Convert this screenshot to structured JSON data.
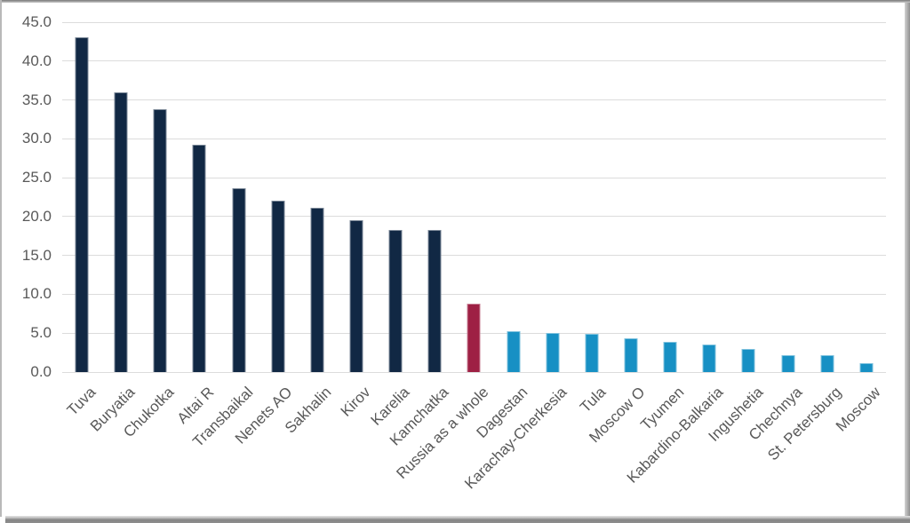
{
  "chart_data": {
    "type": "bar",
    "title": "",
    "categories": [
      "Tuva",
      "Buryatia",
      "Chukotka",
      "Altai R",
      "Transbaikal",
      "Nenets AO",
      "Sakhalin",
      "Kirov",
      "Karelia",
      "Kamchatka",
      "Russia as a whole",
      "Dagestan",
      "Karachay-Cherkesia",
      "Tula",
      "Moscow O",
      "Tyumen",
      "Kabardino-Balkaria",
      "Ingushetia",
      "Chechnya",
      "St. Petersburg",
      "Moscow"
    ],
    "values": [
      43.1,
      36.0,
      33.8,
      29.2,
      23.7,
      22.1,
      21.1,
      19.5,
      18.3,
      18.3,
      8.8,
      5.2,
      5.0,
      4.9,
      4.3,
      3.9,
      3.5,
      3.0,
      2.2,
      2.2,
      1.1
    ],
    "bar_roles": [
      "primary",
      "primary",
      "primary",
      "primary",
      "primary",
      "primary",
      "primary",
      "primary",
      "primary",
      "primary",
      "highlight",
      "secondary",
      "secondary",
      "secondary",
      "secondary",
      "secondary",
      "secondary",
      "secondary",
      "secondary",
      "secondary",
      "secondary"
    ],
    "highlight_category": "Russia as a whole",
    "colors": {
      "primary": "#112844",
      "highlight": "#9E2044",
      "secondary": "#1790C4",
      "gridline": "#DCDCDC",
      "axis_text": "#595959"
    },
    "y_ticks": [
      "45.0",
      "40.0",
      "35.0",
      "30.0",
      "25.0",
      "20.0",
      "15.0",
      "10.0",
      "5.0",
      "0.0"
    ],
    "ylim": [
      0,
      45
    ],
    "grid": true,
    "legend": "none",
    "x_tick_rotation_deg": 45,
    "xlabel": "",
    "ylabel": ""
  }
}
